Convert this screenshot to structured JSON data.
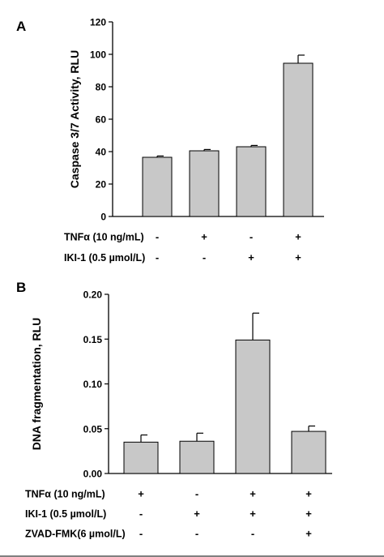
{
  "chart_data": [
    {
      "type": "bar",
      "panel": "A",
      "ylabel": "Caspase 3/7 Activity, RLU",
      "ylim": [
        0,
        120
      ],
      "yticks": [
        0,
        20,
        40,
        60,
        80,
        100,
        120
      ],
      "ytick_labels": [
        "0",
        "20",
        "40",
        "60",
        "80",
        "100",
        "120"
      ],
      "values": [
        36.5,
        40.5,
        43,
        94.5
      ],
      "errors": [
        0.8,
        0.8,
        0.8,
        5
      ],
      "bar_color": "#c8c8c8",
      "conditions": [
        {
          "label": "TNFα (10 ng/mL)",
          "signs": [
            "-",
            "+",
            "-",
            "+"
          ]
        },
        {
          "label": "IKI-1 (0.5 µmol/L)",
          "signs": [
            "-",
            "-",
            "+",
            "+"
          ]
        }
      ]
    },
    {
      "type": "bar",
      "panel": "B",
      "ylabel": "DNA fragmentation, RLU",
      "ylim": [
        0,
        0.2
      ],
      "yticks": [
        0,
        0.05,
        0.1,
        0.15,
        0.2
      ],
      "ytick_labels": [
        "0.00",
        "0.05",
        "0.10",
        "0.15",
        "0.20"
      ],
      "values": [
        0.035,
        0.036,
        0.149,
        0.047
      ],
      "errors": [
        0.008,
        0.009,
        0.03,
        0.006
      ],
      "bar_color": "#c8c8c8",
      "conditions": [
        {
          "label": "TNFα (10 ng/mL)",
          "signs": [
            "+",
            "-",
            "+",
            "+"
          ]
        },
        {
          "label": "IKI-1 (0.5 µmol/L)",
          "signs": [
            "-",
            "+",
            "+",
            "+"
          ]
        },
        {
          "label": "ZVAD-FMK(6 µmol/L)",
          "signs": [
            "-",
            "-",
            "-",
            "+"
          ]
        }
      ]
    }
  ]
}
